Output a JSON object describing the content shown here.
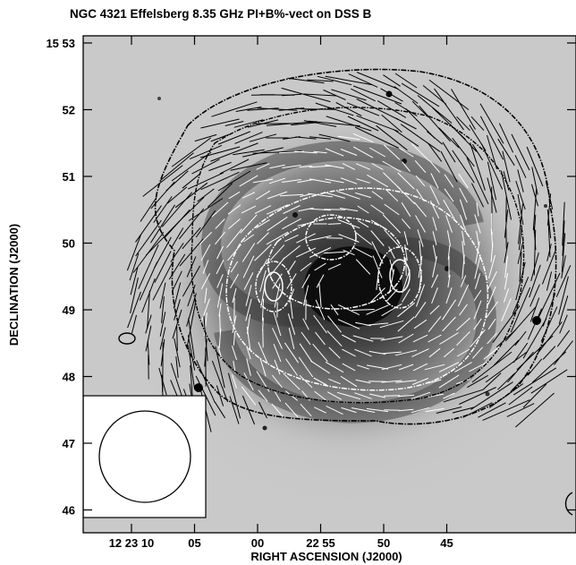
{
  "title": "NGC 4321 Effelsberg 8.35 GHz PI+B%-vect on DSS B",
  "xlabel": "RIGHT ASCENSION (J2000)",
  "ylabel": "DECLINATION (J2000)",
  "x_ticks": [
    {
      "label": "12 23 10",
      "ra_s": 10
    },
    {
      "label": "05",
      "ra_s": 5
    },
    {
      "label": "00",
      "ra_s": 0
    },
    {
      "label": "22 55",
      "ra_s": -5
    },
    {
      "label": "50",
      "ra_s": -10
    },
    {
      "label": "45",
      "ra_s": -15
    }
  ],
  "y_ticks": [
    {
      "label": "15 53",
      "dec_m": 53
    },
    {
      "label": "52",
      "dec_m": 52
    },
    {
      "label": "51",
      "dec_m": 51
    },
    {
      "label": "50",
      "dec_m": 50
    },
    {
      "label": "49",
      "dec_m": 49
    },
    {
      "label": "48",
      "dec_m": 48
    },
    {
      "label": "47",
      "dec_m": 47
    },
    {
      "label": "46",
      "dec_m": 46
    }
  ],
  "colors": {
    "sky": "#c9c9c9",
    "galaxy": "#2a2a2a",
    "contour_dark": "#000000",
    "contour_light": "#ffffff",
    "vector_dark": "#000000",
    "vector_light": "#ffffff"
  }
}
